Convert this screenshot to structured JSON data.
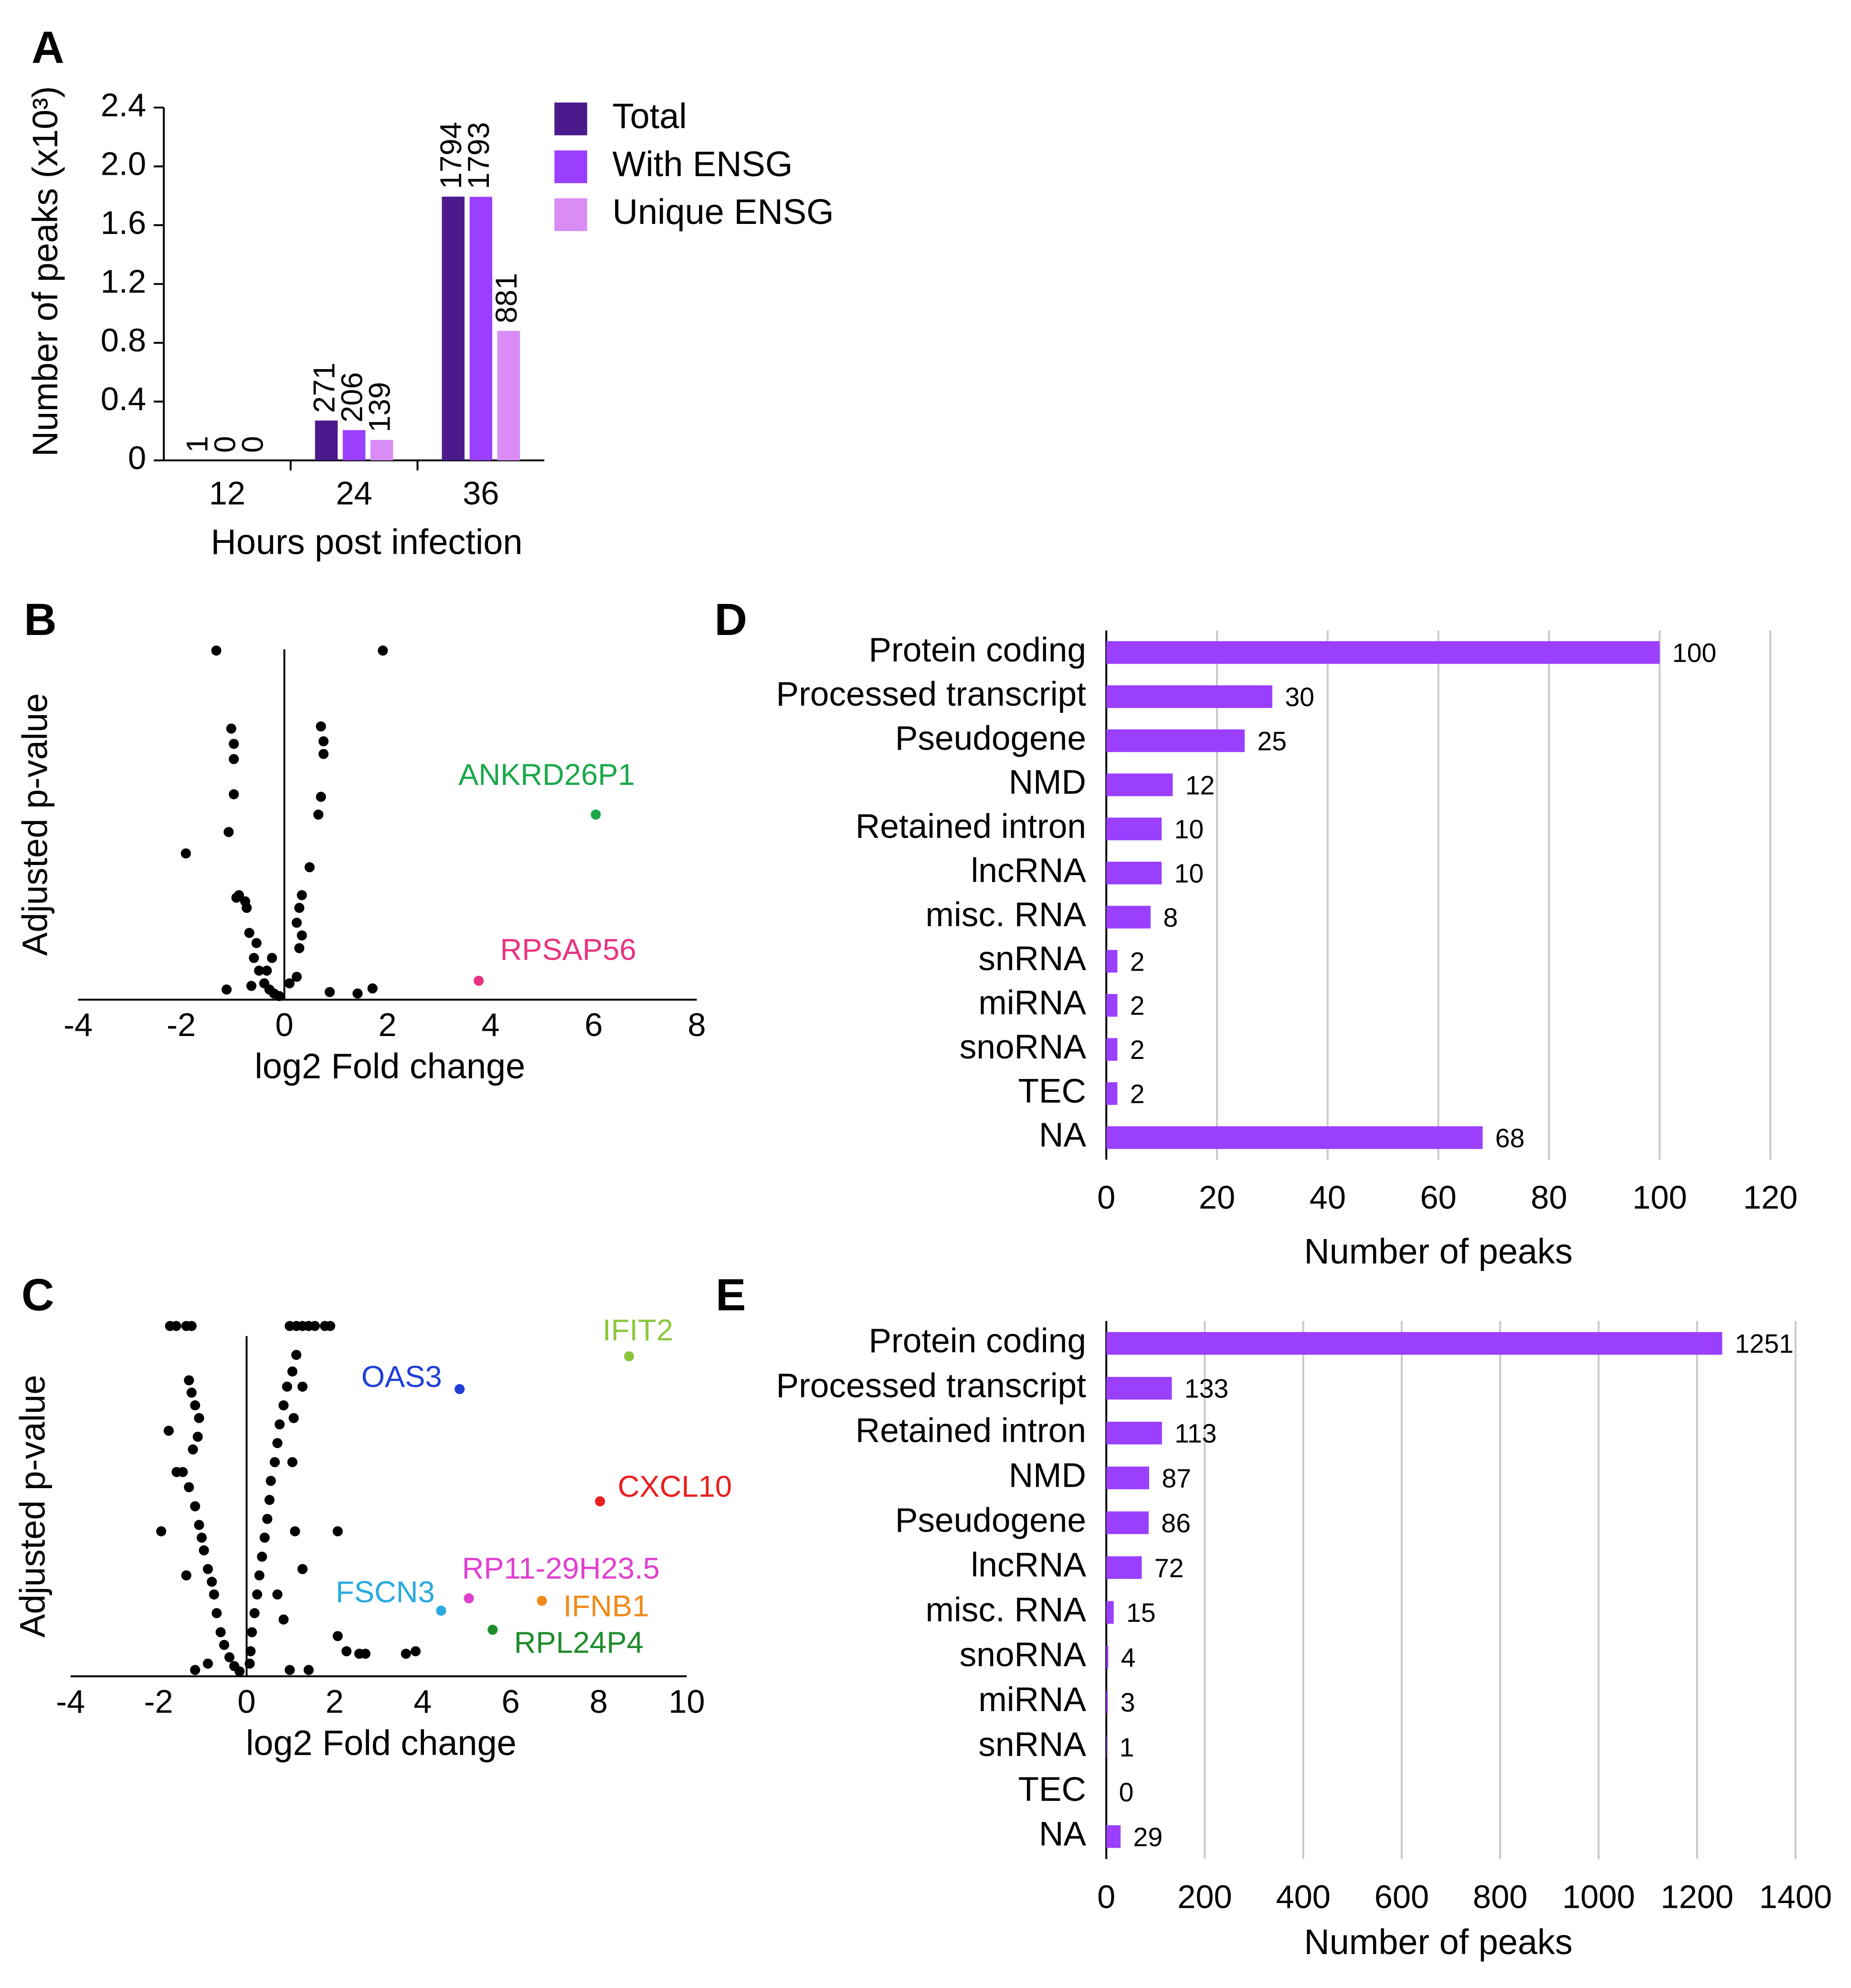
{
  "chart_data": [
    {
      "panel": "A",
      "type": "bar",
      "categories": [
        "12",
        "24",
        "36"
      ],
      "series": [
        {
          "name": "Total",
          "color": "#4b1a8c",
          "values": [
            0.001,
            0.271,
            1.794
          ],
          "value_labels": [
            "1",
            "271",
            "1794"
          ]
        },
        {
          "name": "With ENSG",
          "color": "#9b3fff",
          "values": [
            0,
            0.206,
            1.793
          ],
          "value_labels": [
            "0",
            "206",
            "1793"
          ]
        },
        {
          "name": "Unique ENSG",
          "color": "#d98cf5",
          "values": [
            0,
            0.139,
            0.881
          ],
          "value_labels": [
            "0",
            "139",
            "881"
          ]
        }
      ],
      "ylim": [
        0,
        2.4
      ],
      "yticks": [
        0,
        0.4,
        0.8,
        1.2,
        1.6,
        {
          "value": 2,
          "label": "2.0"
        },
        2.4
      ],
      "ylabel": "Number of peaks (x10³)",
      "xlabel": "Hours post infection",
      "legend": "right"
    },
    {
      "panel": "B",
      "type": "scatter",
      "color": "#000000",
      "x": [
        -1.32,
        1.91,
        -1.03,
        -0.98,
        -0.98,
        -0.98,
        -1.08,
        -1.91,
        0.71,
        0.76,
        0.76,
        0.71,
        0.66,
        0.49,
        -0.88,
        -0.76,
        -0.93,
        -0.73,
        -0.68,
        -0.54,
        -0.59,
        -0.49,
        -0.39,
        -0.29,
        -0.2,
        -0.1,
        0.1,
        0.24,
        0.29,
        0.34,
        0.24,
        0.29,
        0.34,
        -1.12,
        0.88,
        1.42,
        1.71,
        -0.64,
        -0.34,
        -0.24
      ],
      "y": [
        96.2,
        96.2,
        74.7,
        70.5,
        66.3,
        56.6,
        46.2,
        40.3,
        75.3,
        71.2,
        67.7,
        55.9,
        51.0,
        36.5,
        28.8,
        27.1,
        28.1,
        25.3,
        18.4,
        15.6,
        11.5,
        8.0,
        4.5,
        2.8,
        1.7,
        1.0,
        4.5,
        6.3,
        14.2,
        17.7,
        21.2,
        25.3,
        28.8,
        2.8,
        2.1,
        1.7,
        3.1,
        3.8,
        8.0,
        11.5
      ],
      "highlights": [
        {
          "label": "ANKRD26P1",
          "x": 6.04,
          "y": 51.0,
          "color": "#1aa84a"
        },
        {
          "label": "RPSAP56",
          "x": 3.77,
          "y": 5.2,
          "color": "#e8337f"
        }
      ],
      "xlim": [
        -4,
        8
      ],
      "xticks": [
        -4,
        -2,
        0,
        2,
        4,
        6,
        8
      ],
      "ylim": [
        0,
        100
      ],
      "xlabel": "log2 Fold change",
      "ylabel": "Adjusted p-value"
    },
    {
      "panel": "C",
      "type": "scatter",
      "color": "#000000",
      "x": [
        -1.74,
        -1.6,
        -1.37,
        -1.25,
        0.98,
        1.13,
        1.27,
        1.41,
        1.55,
        1.78,
        1.9,
        -1.31,
        -1.25,
        -1.17,
        -1.08,
        -1.11,
        -1.22,
        -1.45,
        -1.31,
        -1.17,
        -1.08,
        -1.02,
        -0.97,
        -0.88,
        -0.79,
        -0.74,
        -0.68,
        -0.59,
        -0.51,
        -0.39,
        -0.28,
        -0.16,
        -1.94,
        -1.59,
        -1.77,
        -1.37,
        -1.17,
        -0.88,
        1.13,
        1.04,
        0.92,
        0.84,
        0.75,
        0.7,
        0.64,
        0.55,
        0.52,
        0.47,
        0.41,
        0.35,
        0.29,
        0.24,
        0.18,
        0.12,
        0.09,
        0.07,
        1.27,
        1.07,
        1.04,
        1.1,
        1.27,
        2.07,
        2.07,
        2.27,
        2.56,
        2.7,
        3.62,
        3.84,
        0.98,
        1.41,
        0.84,
        0.7
      ],
      "y": [
        99.3,
        99.3,
        99.3,
        99.3,
        99.3,
        99.3,
        99.3,
        99.3,
        99.3,
        99.3,
        99.3,
        83.9,
        80.4,
        76.8,
        73.2,
        67.9,
        64.3,
        57.9,
        53.6,
        48.2,
        42.9,
        39.3,
        35.7,
        30.4,
        26.8,
        23.2,
        17.9,
        12.5,
        8.9,
        5.4,
        2.9,
        1.4,
        41.1,
        57.9,
        69.6,
        28.6,
        1.8,
        3.6,
        91.1,
        86.4,
        82.1,
        76.8,
        71.4,
        66.1,
        60.7,
        55.4,
        50.0,
        44.6,
        39.3,
        33.9,
        28.6,
        23.2,
        17.9,
        12.5,
        7.1,
        3.6,
        82.1,
        73.2,
        60.7,
        41.1,
        30.4,
        41.1,
        11.4,
        7.1,
        6.4,
        6.4,
        6.4,
        7.1,
        1.8,
        1.8,
        16.1,
        23.2
      ],
      "highlights": [
        {
          "label": "IFIT2",
          "x": 8.69,
          "y": 90.7,
          "color": "#8cc63f"
        },
        {
          "label": "OAS3",
          "x": 4.84,
          "y": 81.4,
          "color": "#1f3fd8"
        },
        {
          "label": "CXCL10",
          "x": 8.03,
          "y": 49.6,
          "color": "#e8201f"
        },
        {
          "label": "RP11-29H23.5",
          "x": 5.05,
          "y": 22.1,
          "color": "#e040d0"
        },
        {
          "label": "FSCN3",
          "x": 4.42,
          "y": 18.6,
          "color": "#29a9e0"
        },
        {
          "label": "IFNB1",
          "x": 6.71,
          "y": 21.4,
          "color": "#f08a1a"
        },
        {
          "label": "RPL24P4",
          "x": 5.59,
          "y": 13.2,
          "color": "#1e8c2a"
        }
      ],
      "xlim": [
        -4,
        10
      ],
      "xticks": [
        -4,
        -2,
        0,
        2,
        4,
        6,
        8,
        10
      ],
      "ylim": [
        0,
        100
      ],
      "xlabel": "log2 Fold change",
      "ylabel": "Adjusted p-value"
    },
    {
      "panel": "D",
      "type": "bar",
      "orientation": "horizontal",
      "color": "#9b3fff",
      "categories": [
        "Protein coding",
        "Processed transcript",
        "Pseudogene",
        "NMD",
        "Retained intron",
        "lncRNA",
        "misc. RNA",
        "snRNA",
        "miRNA",
        "snoRNA",
        "TEC",
        "NA"
      ],
      "values": [
        100,
        30,
        25,
        12,
        10,
        10,
        8,
        2,
        2,
        2,
        2,
        68
      ],
      "xlim": [
        0,
        120
      ],
      "xticks": [
        0,
        20,
        40,
        60,
        80,
        100,
        120
      ],
      "grid": true,
      "xlabel": "Number of peaks"
    },
    {
      "panel": "E",
      "type": "bar",
      "orientation": "horizontal",
      "color": "#9b3fff",
      "categories": [
        "Protein coding",
        "Processed transcript",
        "Retained intron",
        "NMD",
        "Pseudogene",
        "lncRNA",
        "misc. RNA",
        "snoRNA",
        "miRNA",
        "snRNA",
        "TEC",
        "NA"
      ],
      "values": [
        1251,
        133,
        113,
        87,
        86,
        72,
        15,
        4,
        3,
        1,
        0,
        29
      ],
      "xlim": [
        0,
        1400
      ],
      "xticks": [
        0,
        200,
        400,
        600,
        800,
        1000,
        1200,
        1400
      ],
      "grid": true,
      "xlabel": "Number of peaks"
    }
  ]
}
